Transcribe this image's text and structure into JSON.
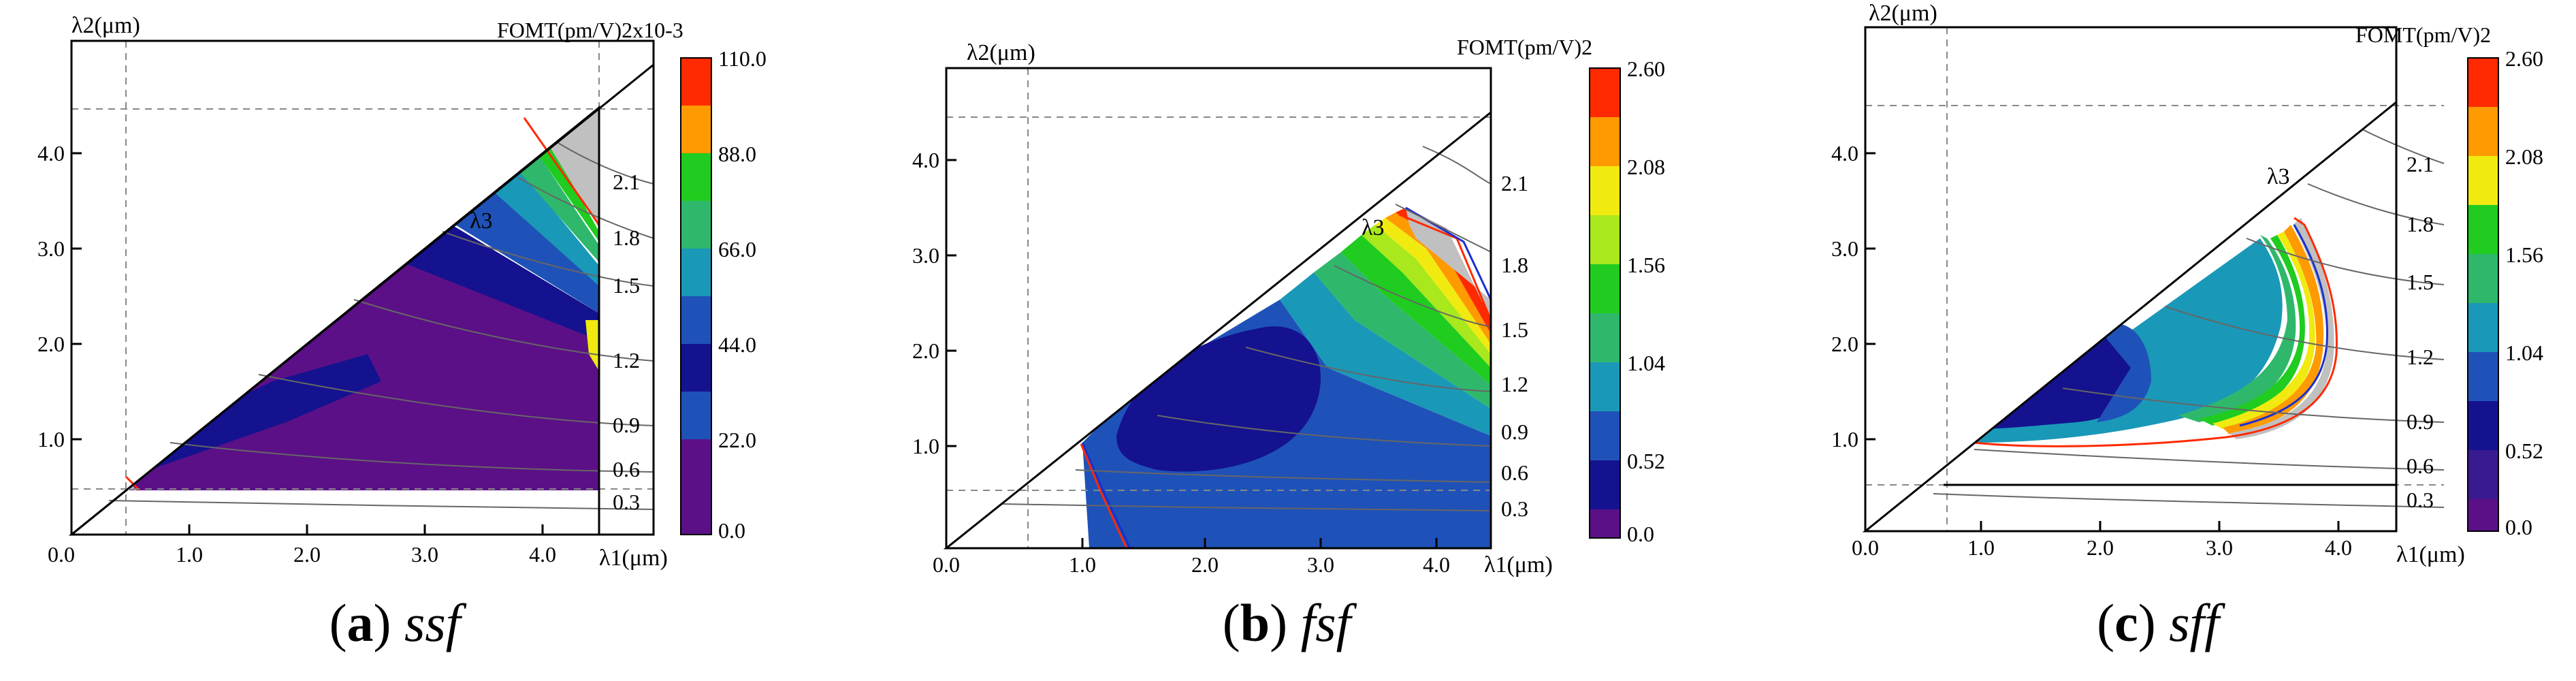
{
  "figure": {
    "panels": [
      {
        "caption_label": "a",
        "caption_text": "ssf",
        "ylabel": "λ2(μm)",
        "xlabel": "λ1(μm)",
        "diag_label": "λ3",
        "cb_title": "FOMT(pm/V)2x10-3",
        "cb_ticks": [
          "110.0",
          "88.0",
          "66.0",
          "44.0",
          "22.0",
          "0.0"
        ],
        "x_ticks": [
          "0.0",
          "1.0",
          "2.0",
          "3.0",
          "4.0"
        ],
        "y_ticks": [
          "1.0",
          "2.0",
          "3.0",
          "4.0"
        ],
        "contour_labels": [
          "2.1",
          "1.8",
          "1.5",
          "1.2",
          "0.9",
          "0.6",
          "0.3"
        ]
      },
      {
        "caption_label": "b",
        "caption_text": "fsf",
        "ylabel": "λ2(μm)",
        "xlabel": "λ1(μm)",
        "diag_label": "λ3",
        "cb_title": "FOMT(pm/V)2",
        "cb_ticks": [
          "2.60",
          "2.08",
          "1.56",
          "1.04",
          "0.52",
          "0.0"
        ],
        "x_ticks": [
          "0.0",
          "1.0",
          "2.0",
          "3.0",
          "4.0"
        ],
        "y_ticks": [
          "1.0",
          "2.0",
          "3.0",
          "4.0"
        ],
        "contour_labels": [
          "2.1",
          "1.8",
          "1.5",
          "1.2",
          "0.9",
          "0.6",
          "0.3"
        ]
      },
      {
        "caption_label": "c",
        "caption_text": "sff",
        "ylabel": "λ2(μm)",
        "xlabel": "λ1(μm)",
        "diag_label": "λ3",
        "cb_title": "FOMT(pm/V)2",
        "cb_ticks": [
          "2.60",
          "2.08",
          "1.56",
          "1.04",
          "0.52",
          "0.0"
        ],
        "x_ticks": [
          "0.0",
          "1.0",
          "2.0",
          "3.0",
          "4.0"
        ],
        "y_ticks": [
          "1.0",
          "2.0",
          "3.0",
          "4.0"
        ],
        "contour_labels": [
          "2.1",
          "1.8",
          "1.5",
          "1.2",
          "0.9",
          "0.6",
          "0.3"
        ]
      }
    ],
    "colormap": [
      "#5b1087",
      "#14128f",
      "#1f52b8",
      "#1a98b8",
      "#2fb86b",
      "#1fcc1f",
      "#a8e81c",
      "#f0ea10",
      "#ff9a00",
      "#ff2a00"
    ],
    "out_of_range_color": "#c0c0c0"
  },
  "chart_data": [
    {
      "type": "heatmap",
      "title": "(a) ssf",
      "xlabel": "λ1(μm)",
      "ylabel": "λ2(μm)",
      "colorbar_label": "FOMT(pm/V)2x10-3",
      "xlim": [
        0.0,
        4.5
      ],
      "ylim": [
        0.0,
        4.5
      ],
      "colorbar_range": [
        0.0,
        110.0
      ],
      "colorbar_ticks": [
        0.0,
        22.0,
        44.0,
        66.0,
        88.0,
        110.0
      ],
      "lambda3_contours": [
        0.3,
        0.6,
        0.9,
        1.2,
        1.5,
        1.8,
        2.1
      ]
    },
    {
      "type": "heatmap",
      "title": "(b) fsf",
      "xlabel": "λ1(μm)",
      "ylabel": "λ2(μm)",
      "colorbar_label": "FOMT(pm/V)2",
      "xlim": [
        0.0,
        4.5
      ],
      "ylim": [
        0.0,
        4.5
      ],
      "colorbar_range": [
        0.0,
        2.6
      ],
      "colorbar_ticks": [
        0.0,
        0.52,
        1.04,
        1.56,
        2.08,
        2.6
      ],
      "lambda3_contours": [
        0.3,
        0.6,
        0.9,
        1.2,
        1.5,
        1.8,
        2.1
      ]
    },
    {
      "type": "heatmap",
      "title": "(c) sff",
      "xlabel": "λ1(μm)",
      "ylabel": "λ2(μm)",
      "colorbar_label": "FOMT(pm/V)2",
      "xlim": [
        0.0,
        4.5
      ],
      "ylim": [
        0.0,
        4.5
      ],
      "colorbar_range": [
        0.0,
        2.6
      ],
      "colorbar_ticks": [
        0.0,
        0.52,
        1.04,
        1.56,
        2.08,
        2.6
      ],
      "lambda3_contours": [
        0.3,
        0.6,
        0.9,
        1.2,
        1.5,
        1.8,
        2.1
      ]
    }
  ]
}
